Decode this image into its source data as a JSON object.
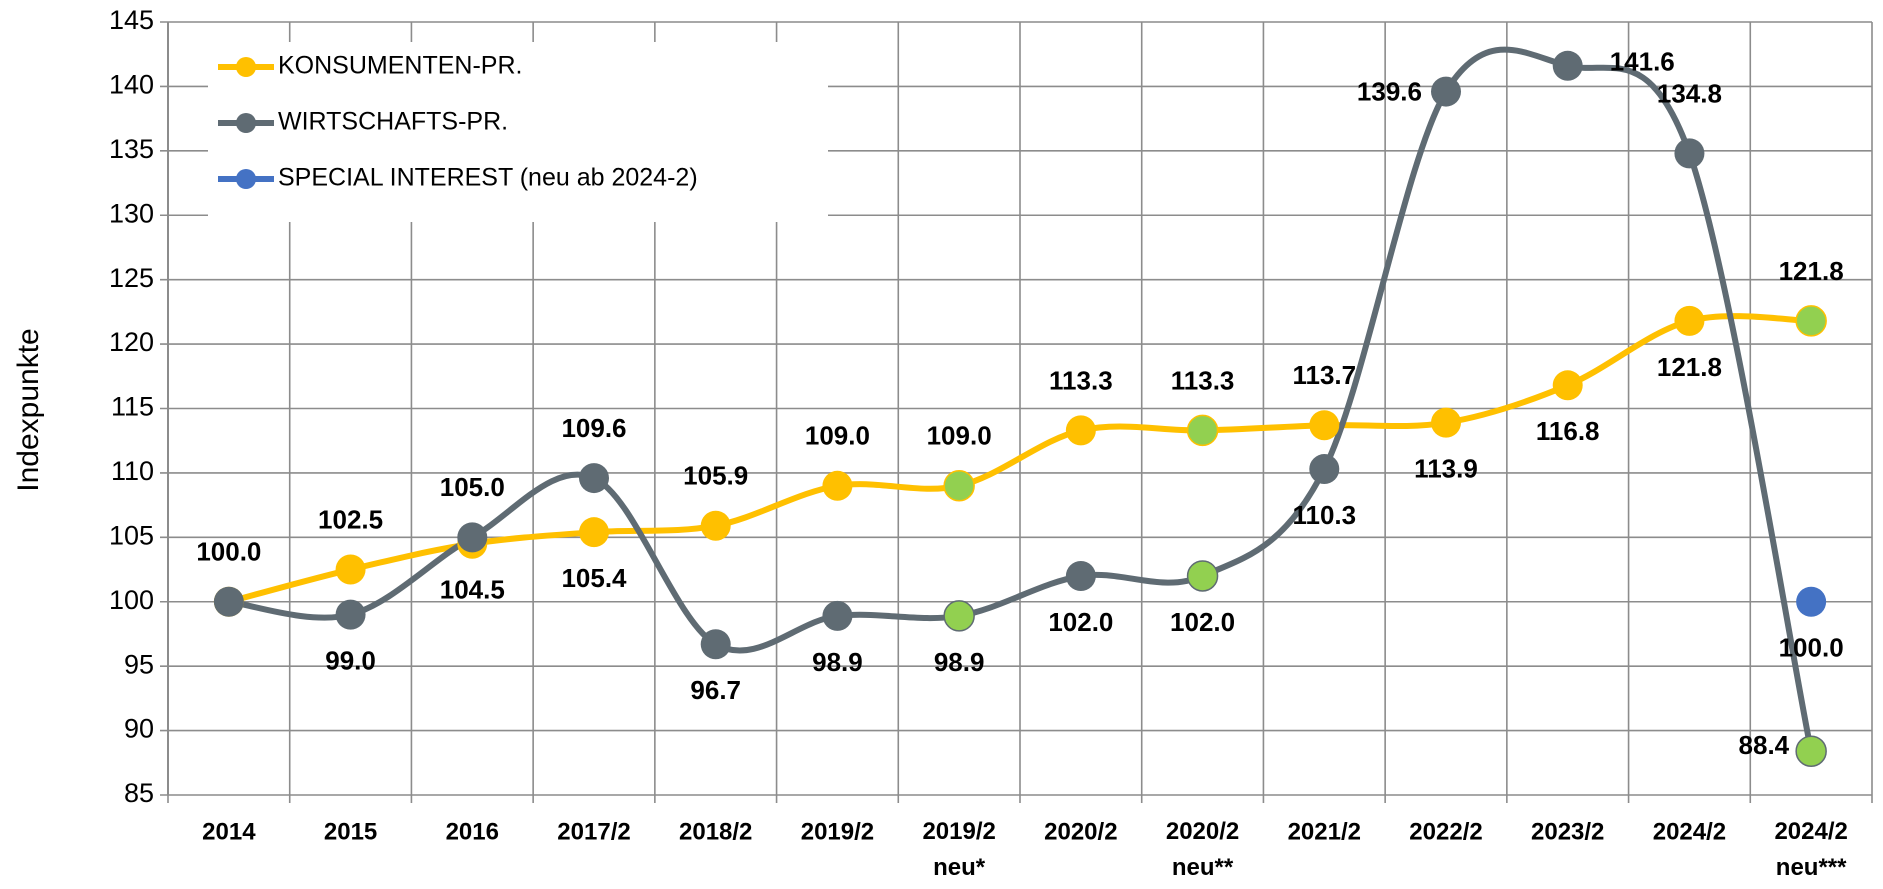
{
  "chart_data": {
    "type": "line",
    "y_label": "Indexpunkte",
    "categories": [
      "2014",
      "2015",
      "2016",
      "2017/2",
      "2018/2",
      "2019/2",
      "2019/2\nneu*",
      "2020/2",
      "2020/2\nneu**",
      "2021/2",
      "2022/2",
      "2023/2",
      "2024/2",
      "2024/2\nneu***"
    ],
    "series": [
      {
        "name": "KONSUMENTEN-PR.",
        "color": "#ffc000",
        "values": [
          100.0,
          102.5,
          104.5,
          105.4,
          105.9,
          109.0,
          109.0,
          113.3,
          113.3,
          113.7,
          113.9,
          116.8,
          121.8,
          121.8
        ],
        "value_labels": [
          "100.0",
          "102.5",
          "104.5",
          "105.4",
          "105.9",
          "109.0",
          "109.0",
          "113.3",
          "113.3",
          "113.7",
          "113.9",
          "116.8",
          "121.8",
          "121.8"
        ]
      },
      {
        "name": "WIRTSCHAFTS-PR.",
        "color": "#5f6b73",
        "values": [
          100.0,
          99.0,
          105.0,
          109.6,
          96.7,
          98.9,
          98.9,
          102.0,
          102.0,
          110.3,
          139.6,
          141.6,
          134.8,
          88.4
        ],
        "value_labels": [
          null,
          "99.0",
          "105.0",
          "109.6",
          "96.7",
          "98.9",
          "98.9",
          "102.0",
          "102.0",
          "110.3",
          "139.6",
          "141.6",
          "134.8",
          "88.4"
        ]
      },
      {
        "name": "SPECIAL INTEREST (neu ab 2024-2)",
        "color": "#4472c4",
        "values": [
          null,
          null,
          null,
          null,
          null,
          null,
          null,
          null,
          null,
          null,
          null,
          null,
          null,
          100.0
        ],
        "value_labels": [
          null,
          null,
          null,
          null,
          null,
          null,
          null,
          null,
          null,
          null,
          null,
          null,
          null,
          "100.0"
        ]
      }
    ],
    "highlight_indices": [
      6,
      8,
      13
    ],
    "highlight_color": "#92d050",
    "ylim": [
      85,
      145
    ],
    "yticks": [
      85,
      90,
      95,
      100,
      105,
      110,
      115,
      120,
      125,
      130,
      135,
      140,
      145
    ],
    "grid": true,
    "legend": "top-left"
  }
}
